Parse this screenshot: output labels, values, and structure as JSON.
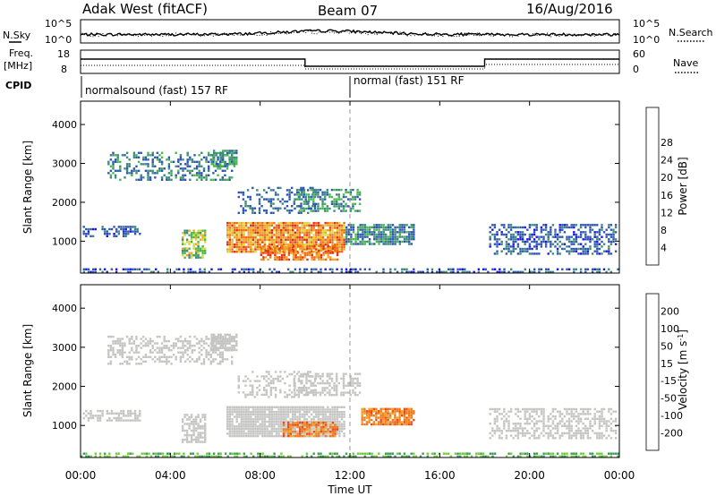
{
  "header": {
    "station": "Adak West (fitACF)",
    "beam": "Beam 07",
    "date": "16/Aug/2016"
  },
  "top_panel": {
    "left_label": "N.Sky",
    "right_label": "N.Search",
    "left_ticks": [
      "10^5",
      "10^0"
    ],
    "right_ticks": [
      "10^5",
      "10^0"
    ]
  },
  "freq_panel": {
    "left_label_line1": "Freq.",
    "left_label_line2": "[MHz]",
    "right_label": "Nave",
    "left_ticks": [
      "18",
      "8"
    ],
    "right_ticks": [
      "60",
      "0"
    ]
  },
  "cpid": {
    "label": "CPID",
    "segments": [
      {
        "text": "normalsound (fast) 157 RF",
        "start_hr": 0
      },
      {
        "text": "normal (fast) 151 RF",
        "start_hr": 12
      }
    ]
  },
  "colors": {
    "power": [
      "#1a14e6",
      "#2d55b4",
      "#3b8a7a",
      "#47b84b",
      "#d8d83a",
      "#f2a21e",
      "#f06a14",
      "#e23012",
      "#ff0000"
    ],
    "velocity": [
      "#ff0000",
      "#f04a14",
      "#f07a1c",
      "#f2a01e",
      "#c4c4c2",
      "#70cc38",
      "#3a9a58",
      "#3156a8",
      "#1a14e6"
    ],
    "ground": "#c4c4c2"
  },
  "chart_data": [
    {
      "type": "heatmap",
      "name": "power",
      "ylabel": "Slant Range [km]",
      "xlim": [
        0,
        24
      ],
      "ylim": [
        180,
        4600
      ],
      "yticks": [
        1000,
        2000,
        3000,
        4000
      ],
      "colorbar_label": "Power [dB]",
      "colorbar_range": [
        0,
        32
      ],
      "colorbar_ticks": [
        4,
        8,
        12,
        16,
        20,
        24,
        28
      ],
      "regions": [
        {
          "t": [
            0.0,
            24.0
          ],
          "r": [
            180,
            320
          ],
          "density": 0.45,
          "level": [
            2,
            10
          ]
        },
        {
          "t": [
            0.1,
            2.7
          ],
          "r": [
            1100,
            1400
          ],
          "density": 0.55,
          "level": [
            3,
            9
          ]
        },
        {
          "t": [
            4.5,
            5.6
          ],
          "r": [
            550,
            1300
          ],
          "density": 0.7,
          "level": [
            10,
            22
          ]
        },
        {
          "t": [
            1.2,
            6.8
          ],
          "r": [
            2550,
            3300
          ],
          "density": 0.4,
          "level": [
            4,
            14
          ]
        },
        {
          "t": [
            5.8,
            7.0
          ],
          "r": [
            2900,
            3350
          ],
          "density": 0.7,
          "level": [
            6,
            16
          ]
        },
        {
          "t": [
            7.0,
            10.5
          ],
          "r": [
            1700,
            2400
          ],
          "density": 0.3,
          "level": [
            4,
            10
          ]
        },
        {
          "t": [
            9.5,
            12.5
          ],
          "r": [
            1750,
            2350
          ],
          "density": 0.5,
          "level": [
            6,
            16
          ]
        },
        {
          "t": [
            6.5,
            11.8
          ],
          "r": [
            700,
            1500
          ],
          "density": 0.9,
          "level": [
            18,
            30
          ]
        },
        {
          "t": [
            8.0,
            11.5
          ],
          "r": [
            500,
            900
          ],
          "density": 0.7,
          "level": [
            20,
            30
          ]
        },
        {
          "t": [
            11.8,
            14.9
          ],
          "r": [
            900,
            1450
          ],
          "density": 0.8,
          "level": [
            4,
            14
          ]
        },
        {
          "t": [
            18.2,
            23.9
          ],
          "r": [
            650,
            1450
          ],
          "density": 0.5,
          "level": [
            3,
            10
          ]
        }
      ]
    },
    {
      "type": "heatmap",
      "name": "velocity",
      "xlabel": "Time UT",
      "ylabel": "Slant Range [km]",
      "xlim": [
        0,
        24
      ],
      "ylim": [
        180,
        4600
      ],
      "yticks": [
        1000,
        2000,
        3000,
        4000
      ],
      "xticks": [
        "00:00",
        "04:00",
        "08:00",
        "12:00",
        "16:00",
        "20:00",
        "00:00"
      ],
      "colorbar_label": "Velocity [m s^-1]",
      "colorbar_ticks": [
        -200,
        -100,
        -50,
        -15,
        15,
        50,
        100,
        200
      ],
      "regions": [
        {
          "t": [
            0.0,
            24.0
          ],
          "r": [
            180,
            320
          ],
          "density": 0.55,
          "level": [
            5,
            6
          ]
        },
        {
          "t": [
            0.1,
            2.7
          ],
          "r": [
            1100,
            1400
          ],
          "density": 0.55,
          "level": [
            4,
            4
          ]
        },
        {
          "t": [
            4.5,
            5.6
          ],
          "r": [
            550,
            1300
          ],
          "density": 0.7,
          "level": [
            4,
            4
          ]
        },
        {
          "t": [
            1.2,
            6.8
          ],
          "r": [
            2550,
            3300
          ],
          "density": 0.4,
          "level": [
            4,
            4
          ]
        },
        {
          "t": [
            5.8,
            7.0
          ],
          "r": [
            2900,
            3350
          ],
          "density": 0.7,
          "level": [
            4,
            4
          ]
        },
        {
          "t": [
            7.0,
            10.5
          ],
          "r": [
            1700,
            2400
          ],
          "density": 0.3,
          "level": [
            4,
            4
          ]
        },
        {
          "t": [
            9.5,
            12.5
          ],
          "r": [
            1750,
            2350
          ],
          "density": 0.5,
          "level": [
            4,
            4
          ]
        },
        {
          "t": [
            6.5,
            11.8
          ],
          "r": [
            700,
            1500
          ],
          "density": 0.9,
          "level": [
            4,
            4
          ]
        },
        {
          "t": [
            9.0,
            11.5
          ],
          "r": [
            700,
            1100
          ],
          "density": 0.7,
          "level": [
            1,
            3
          ]
        },
        {
          "t": [
            12.5,
            14.9
          ],
          "r": [
            1000,
            1450
          ],
          "density": 0.8,
          "level": [
            1,
            3
          ]
        },
        {
          "t": [
            18.2,
            23.9
          ],
          "r": [
            650,
            1450
          ],
          "density": 0.5,
          "level": [
            4,
            4
          ]
        }
      ]
    }
  ]
}
